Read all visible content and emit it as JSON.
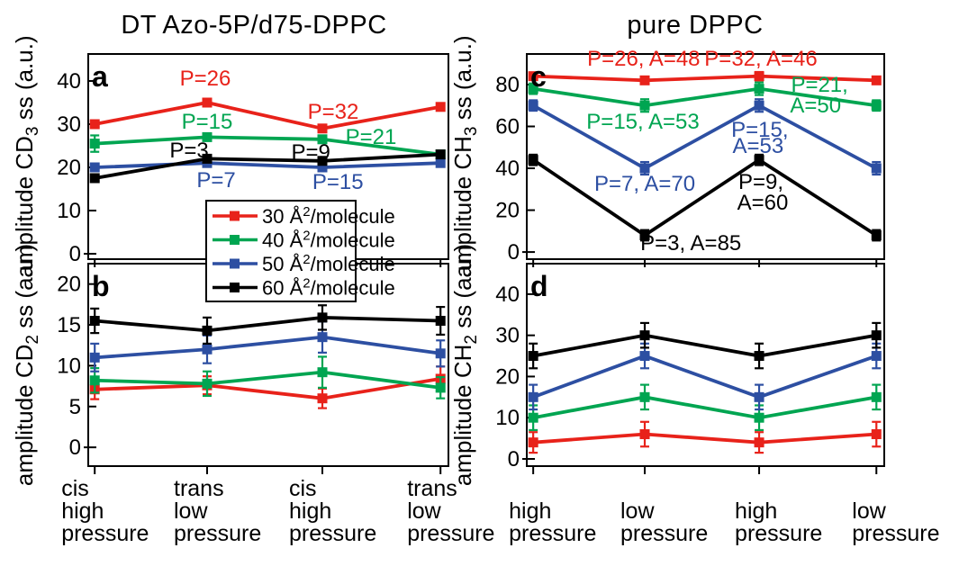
{
  "figure_titles": {
    "left": "DT Azo-5P/d75-DPPC",
    "right": "pure DPPC"
  },
  "colors": {
    "s30": "#e8221a",
    "s40": "#00a551",
    "s50": "#2d4fa2",
    "s60": "#000000"
  },
  "legend": {
    "position": "inside-left-center",
    "items": [
      {
        "text": "30 Å²/molecule",
        "pre": "30 Å",
        "sup": "2",
        "post": "/molecule",
        "color": "#e8221a"
      },
      {
        "text": "40 Å²/molecule",
        "pre": "40 Å",
        "sup": "2",
        "post": "/molecule",
        "color": "#00a551"
      },
      {
        "text": "50 Å²/molecule",
        "pre": "50 Å",
        "sup": "2",
        "post": "/molecule",
        "color": "#2d4fa2"
      },
      {
        "text": "60 Å²/molecule",
        "pre": "60 Å",
        "sup": "2",
        "post": "/molecule",
        "color": "#000000"
      }
    ]
  },
  "chart_data": [
    {
      "type": "line",
      "panel": "a",
      "title": "DT Azo-5P/d75-DPPC",
      "ylabel": "amplitude CD₃ ss (a.u.)",
      "ylabel_parts": {
        "pre": "amplitude CD",
        "sub": "3",
        "post": " ss (a.u.)"
      },
      "yticks": [
        0,
        10,
        20,
        30,
        40
      ],
      "ylim": [
        -1.25,
        46.25
      ],
      "grid": false,
      "categories": [
        "cis high pressure",
        "trans low pressure",
        "cis high pressure",
        "trans low pressure"
      ],
      "series": [
        {
          "name": "30 Å²/molecule",
          "color": "#e8221a",
          "values": [
            30,
            35,
            29,
            34
          ],
          "errors": [
            0.5,
            0.5,
            0.5,
            0.5
          ]
        },
        {
          "name": "40 Å²/molecule",
          "color": "#00a551",
          "values": [
            25.5,
            27,
            26.5,
            23
          ],
          "errors": [
            1.9,
            0.6,
            0.6,
            0.6
          ]
        },
        {
          "name": "50 Å²/molecule",
          "color": "#2d4fa2",
          "values": [
            20,
            21,
            20,
            21
          ],
          "errors": [
            0.5,
            0.5,
            0.5,
            0.5
          ]
        },
        {
          "name": "60 Å²/molecule",
          "color": "#000000",
          "values": [
            17.5,
            22,
            21.5,
            23
          ],
          "errors": [
            0.5,
            0.5,
            0.5,
            0.5
          ]
        }
      ],
      "annotations": [
        {
          "text": "P=26",
          "color": "#e8221a",
          "fx": 0.325,
          "fy": 0.154
        },
        {
          "text": "P=15",
          "color": "#00a551",
          "fx": 0.33,
          "fy": 0.364
        },
        {
          "text": "P=3",
          "color": "#000000",
          "fx": 0.28,
          "fy": 0.504
        },
        {
          "text": "P=9",
          "color": "#000000",
          "fx": 0.618,
          "fy": 0.513
        },
        {
          "text": "P=32",
          "color": "#e8221a",
          "fx": 0.68,
          "fy": 0.316
        },
        {
          "text": "P=21",
          "color": "#00a551",
          "fx": 0.785,
          "fy": 0.439
        },
        {
          "text": "P=7",
          "color": "#2d4fa2",
          "fx": 0.355,
          "fy": 0.649
        },
        {
          "text": "P=15",
          "color": "#2d4fa2",
          "fx": 0.693,
          "fy": 0.658
        }
      ]
    },
    {
      "type": "line",
      "panel": "b",
      "title": "DT Azo-5P/d75-DPPC",
      "ylabel": "amplitude CD₂ ss (a.u.)",
      "ylabel_parts": {
        "pre": "amplitude CD",
        "sub": "2",
        "post": " ss (a.u.)"
      },
      "yticks": [
        0,
        5,
        10,
        15,
        20
      ],
      "ylim": [
        -2.3,
        22.5
      ],
      "grid": false,
      "categories": [
        "cis high pressure",
        "trans low pressure",
        "cis high pressure",
        "trans low pressure"
      ],
      "series": [
        {
          "name": "30 Å²/molecule",
          "color": "#e8221a",
          "values": [
            7.1,
            7.6,
            6,
            8.4
          ],
          "errors": [
            1.2,
            1.1,
            1.2,
            1.5
          ]
        },
        {
          "name": "40 Å²/molecule",
          "color": "#00a551",
          "values": [
            8.2,
            7.8,
            9.2,
            7.3
          ],
          "errors": [
            1.5,
            1.5,
            1.9,
            1.3
          ]
        },
        {
          "name": "50 Å²/molecule",
          "color": "#2d4fa2",
          "values": [
            11,
            12,
            13.5,
            11.5
          ],
          "errors": [
            1.7,
            1.7,
            1.9,
            1.6
          ]
        },
        {
          "name": "60 Å²/molecule",
          "color": "#000000",
          "values": [
            15.5,
            14.3,
            15.9,
            15.5
          ],
          "errors": [
            1.5,
            1.6,
            1.5,
            1.7
          ]
        }
      ],
      "annotations": []
    },
    {
      "type": "line",
      "panel": "c",
      "title": "pure DPPC",
      "ylabel": "amplitude CH₃ ss (a.u.)",
      "ylabel_parts": {
        "pre": "amplitude CH",
        "sub": "3",
        "post": " ss (a.u.)"
      },
      "yticks": [
        0,
        20,
        40,
        60,
        80
      ],
      "ylim": [
        -3.4,
        94.6
      ],
      "grid": false,
      "categories": [
        "high pressure",
        "low pressure",
        "high pressure",
        "low pressure"
      ],
      "series": [
        {
          "name": "30 Å²/molecule",
          "color": "#e8221a",
          "values": [
            84,
            82,
            84,
            82
          ],
          "errors": [
            1.5,
            1.5,
            2,
            1.5
          ]
        },
        {
          "name": "40 Å²/molecule",
          "color": "#00a551",
          "values": [
            78,
            70,
            78,
            70
          ],
          "errors": [
            2.5,
            3,
            3,
            2.5
          ]
        },
        {
          "name": "50 Å²/molecule",
          "color": "#2d4fa2",
          "values": [
            70,
            40,
            70,
            40
          ],
          "errors": [
            2.5,
            3,
            3,
            3
          ]
        },
        {
          "name": "60 Å²/molecule",
          "color": "#000000",
          "values": [
            44,
            8,
            44,
            8
          ],
          "errors": [
            2.5,
            2.5,
            2.5,
            2.5
          ]
        }
      ],
      "annotations": [
        {
          "text": "P=26, A=48",
          "color": "#e8221a",
          "fx": 0.327,
          "fy": 0.057
        },
        {
          "text": "P=32, A=46",
          "color": "#e8221a",
          "fx": 0.655,
          "fy": 0.057
        },
        {
          "text": "P=15, A=53",
          "color": "#00a551",
          "fx": 0.325,
          "fy": 0.364
        },
        {
          "text": "P=21,",
          "color": "#00a551",
          "fx": 0.819,
          "fy": 0.184
        },
        {
          "text": "A=50",
          "color": "#00a551",
          "fx": 0.808,
          "fy": 0.285
        },
        {
          "text": "P=15,",
          "color": "#2d4fa2",
          "fx": 0.652,
          "fy": 0.403
        },
        {
          "text": "A=53",
          "color": "#2d4fa2",
          "fx": 0.647,
          "fy": 0.482
        },
        {
          "text": "P=7, A=70",
          "color": "#2d4fa2",
          "fx": 0.33,
          "fy": 0.667
        },
        {
          "text": "P=9,",
          "color": "#000000",
          "fx": 0.655,
          "fy": 0.658
        },
        {
          "text": "A=60",
          "color": "#000000",
          "fx": 0.66,
          "fy": 0.759
        },
        {
          "text": "P=3, A=85",
          "color": "#000000",
          "fx": 0.459,
          "fy": 0.956
        }
      ]
    },
    {
      "type": "line",
      "panel": "d",
      "title": "pure DPPC",
      "ylabel": "amplitude CH₂ ss (a.u.)",
      "ylabel_parts": {
        "pre": "amplitude CH",
        "sub": "2",
        "post": " ss (a.u.)"
      },
      "yticks": [
        0,
        10,
        20,
        30,
        40
      ],
      "ylim": [
        -1.75,
        47.4
      ],
      "grid": false,
      "categories": [
        "high pressure",
        "low pressure",
        "high pressure",
        "low pressure"
      ],
      "series": [
        {
          "name": "30 Å²/molecule",
          "color": "#e8221a",
          "values": [
            4,
            6,
            4,
            6
          ],
          "errors": [
            2.5,
            3,
            2.5,
            3
          ]
        },
        {
          "name": "40 Å²/molecule",
          "color": "#00a551",
          "values": [
            10,
            15,
            10,
            15
          ],
          "errors": [
            3,
            3,
            3,
            3
          ]
        },
        {
          "name": "50 Å²/molecule",
          "color": "#2d4fa2",
          "values": [
            15,
            25,
            15,
            25
          ],
          "errors": [
            3,
            3,
            3,
            3
          ]
        },
        {
          "name": "60 Å²/molecule",
          "color": "#000000",
          "values": [
            25,
            30,
            25,
            30
          ],
          "errors": [
            3,
            3,
            3,
            3
          ]
        }
      ],
      "annotations": []
    }
  ]
}
